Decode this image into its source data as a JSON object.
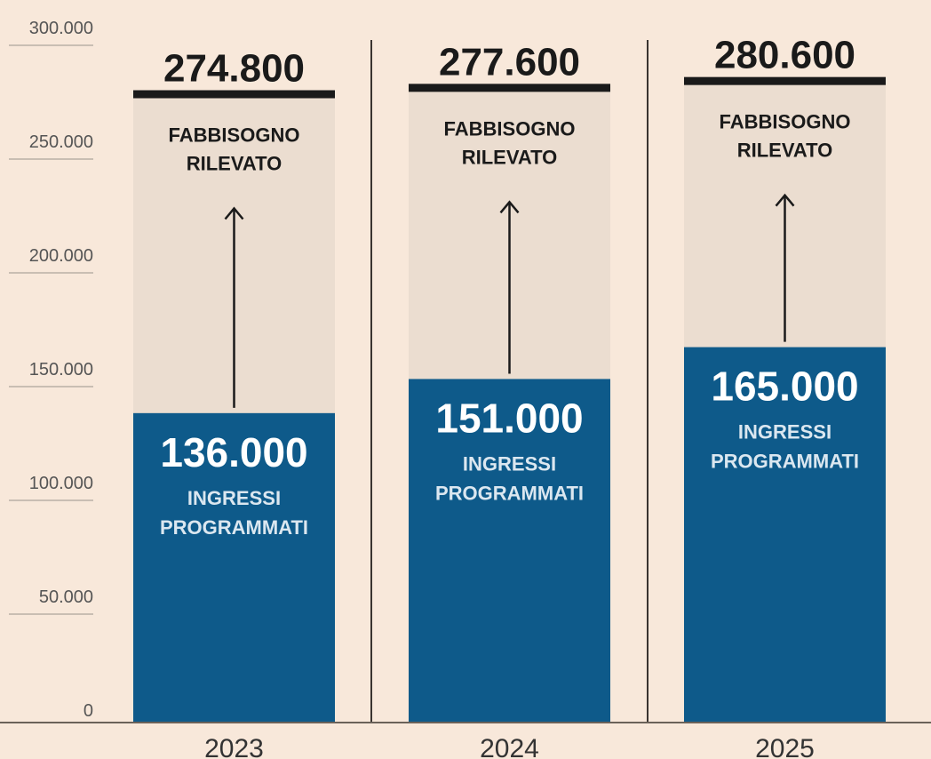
{
  "chart_data": {
    "type": "bar",
    "categories": [
      "2023",
      "2024",
      "2025"
    ],
    "series": [
      {
        "name": "INGRESSI PROGRAMMATI",
        "values": [
          136000,
          151000,
          165000
        ]
      },
      {
        "name": "FABBISOGNO RILEVATO",
        "values": [
          274800,
          277600,
          280600
        ]
      }
    ],
    "value_labels": {
      "ingressi": [
        "136.000",
        "151.000",
        "165.000"
      ],
      "fabbisogno": [
        "274.800",
        "277.600",
        "280.600"
      ]
    },
    "bar_label_lines": {
      "ingressi": [
        "INGRESSI",
        "PROGRAMMATI"
      ],
      "fabbisogno": [
        "FABBISOGNO",
        "RILEVATO"
      ]
    },
    "y_ticks": [
      0,
      50000,
      100000,
      150000,
      200000,
      250000,
      300000
    ],
    "y_tick_labels": [
      "0",
      "50.000",
      "100.000",
      "150.000",
      "200.000",
      "250.000",
      "300.000"
    ],
    "ylim": [
      0,
      300000
    ],
    "grid": false,
    "legend": "none",
    "colors": {
      "background": "#f8e8da",
      "ingressi_bar": "#0e5a8a",
      "fabbisogno_bar": "#ebddd0",
      "ink": "#1a1a1a",
      "axis_text": "#555555",
      "tick_line": "#b9b0a6"
    }
  }
}
